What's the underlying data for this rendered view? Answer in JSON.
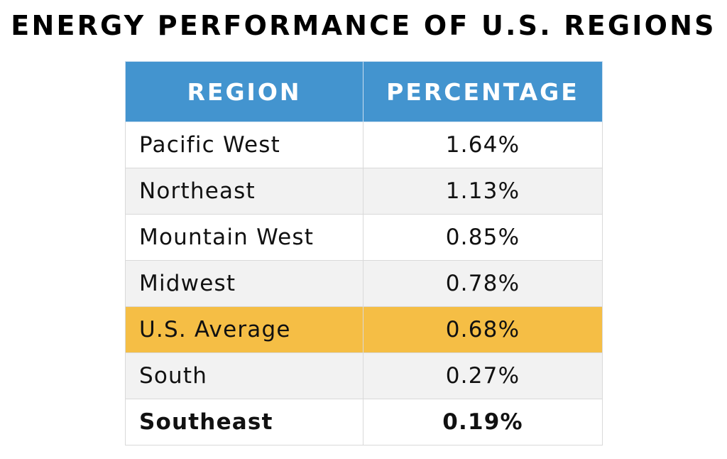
{
  "title": "ENERGY PERFORMANCE OF U.S. REGIONS",
  "colors": {
    "header_bg": "#4394cf",
    "header_text": "#ffffff",
    "highlight_row": "#f5be45",
    "alt_row": "#f2f2f2"
  },
  "chart_data": {
    "type": "table",
    "title": "ENERGY PERFORMANCE OF U.S. REGIONS",
    "columns": [
      "REGION",
      "PERCENTAGE"
    ],
    "rows": [
      {
        "region": "Pacific West",
        "percentage": "1.64%",
        "value": 1.64,
        "style": "white"
      },
      {
        "region": "Northeast",
        "percentage": "1.13%",
        "value": 1.13,
        "style": "gray"
      },
      {
        "region": "Mountain West",
        "percentage": "0.85%",
        "value": 0.85,
        "style": "white"
      },
      {
        "region": "Midwest",
        "percentage": "0.78%",
        "value": 0.78,
        "style": "gray"
      },
      {
        "region": "U.S. Average",
        "percentage": "0.68%",
        "value": 0.68,
        "style": "highlight"
      },
      {
        "region": "South",
        "percentage": "0.27%",
        "value": 0.27,
        "style": "gray"
      },
      {
        "region": "Southeast",
        "percentage": "0.19%",
        "value": 0.19,
        "style": "bold"
      }
    ]
  }
}
